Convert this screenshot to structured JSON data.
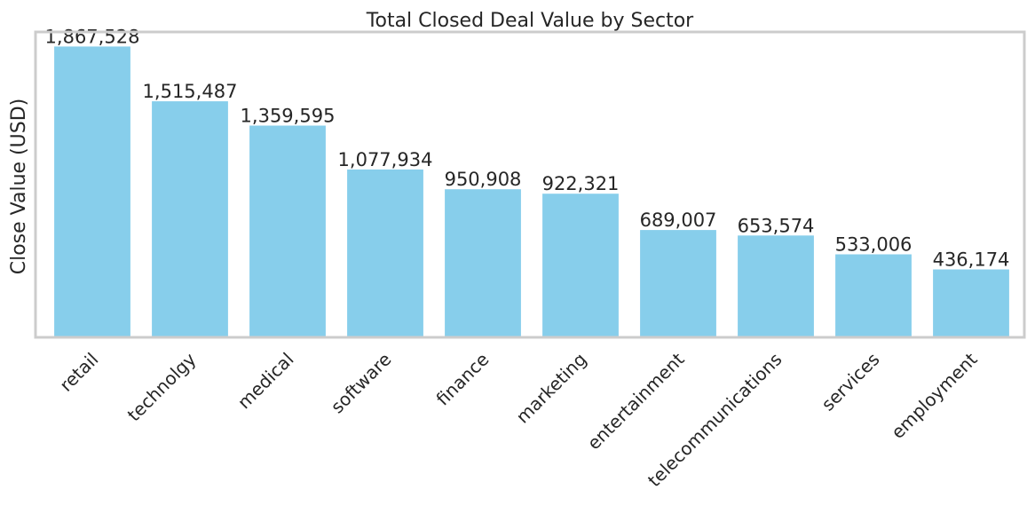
{
  "chart_data": {
    "type": "bar",
    "title": "Total Closed Deal Value by Sector",
    "xlabel": "",
    "ylabel": "Close Value (USD)",
    "categories": [
      "retail",
      "technolgy",
      "medical",
      "software",
      "finance",
      "marketing",
      "entertainment",
      "telecommunications",
      "services",
      "employment"
    ],
    "values": [
      1867528,
      1515487,
      1359595,
      1077934,
      950908,
      922321,
      689007,
      653574,
      533006,
      436174
    ],
    "value_labels": [
      "1,867,528",
      "1,515,487",
      "1,359,595",
      "1,077,934",
      "950,908",
      "922,321",
      "689,007",
      "653,574",
      "533,006",
      "436,174"
    ],
    "ylim": [
      0,
      1960904
    ],
    "y_ticks_shown": false,
    "grid": false,
    "legend": "none",
    "bar_color": "#87ceeb",
    "frame_color": "#cccccc"
  }
}
